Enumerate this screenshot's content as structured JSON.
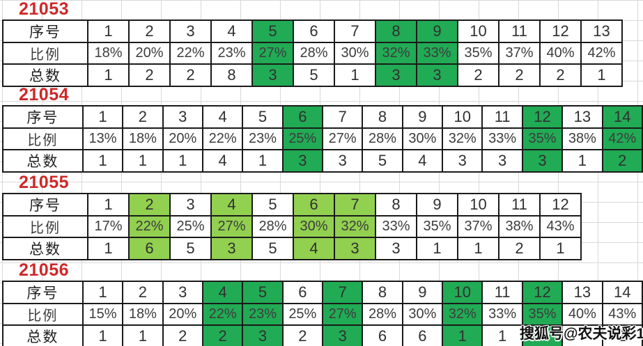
{
  "colors": {
    "title_red": "#cf2829",
    "dark_green": "#21ab55",
    "light_green": "#92d050",
    "border_black": "#1a1a1a",
    "grid_gray": "#d8d8d8"
  },
  "row_labels": {
    "serial": "序号",
    "ratio": "比例",
    "total": "总数"
  },
  "watermark": {
    "text": "搜狐号@农夫说彩1"
  },
  "tables": [
    {
      "title": "21053",
      "highlight": "dark",
      "highlight_cols": [
        5,
        8,
        9
      ],
      "serial": [
        "1",
        "2",
        "3",
        "4",
        "5",
        "6",
        "7",
        "8",
        "9",
        "10",
        "11",
        "12",
        "13"
      ],
      "ratio": [
        "18%",
        "20%",
        "22%",
        "23%",
        "27%",
        "28%",
        "30%",
        "32%",
        "33%",
        "35%",
        "37%",
        "40%",
        "42%"
      ],
      "total": [
        "1",
        "2",
        "2",
        "8",
        "3",
        "5",
        "1",
        "3",
        "3",
        "2",
        "2",
        "2",
        "1"
      ]
    },
    {
      "title": "21054",
      "highlight": "dark",
      "highlight_cols": [
        6,
        12,
        14
      ],
      "serial": [
        "1",
        "2",
        "3",
        "4",
        "5",
        "6",
        "7",
        "8",
        "9",
        "10",
        "11",
        "12",
        "13",
        "14"
      ],
      "ratio": [
        "13%",
        "18%",
        "20%",
        "22%",
        "23%",
        "25%",
        "27%",
        "28%",
        "30%",
        "32%",
        "33%",
        "35%",
        "38%",
        "42%"
      ],
      "total": [
        "1",
        "1",
        "1",
        "4",
        "1",
        "3",
        "3",
        "5",
        "4",
        "3",
        "3",
        "3",
        "1",
        "2"
      ]
    },
    {
      "title": "21055",
      "highlight": "light",
      "highlight_cols": [
        2,
        4,
        6,
        7
      ],
      "serial": [
        "1",
        "2",
        "3",
        "4",
        "5",
        "6",
        "7",
        "8",
        "9",
        "10",
        "11",
        "12"
      ],
      "ratio": [
        "17%",
        "22%",
        "25%",
        "27%",
        "28%",
        "30%",
        "32%",
        "33%",
        "35%",
        "37%",
        "38%",
        "43%"
      ],
      "total": [
        "1",
        "6",
        "5",
        "3",
        "5",
        "4",
        "3",
        "3",
        "1",
        "1",
        "2",
        "1"
      ]
    },
    {
      "title": "21056",
      "highlight": "dark",
      "highlight_cols": [
        4,
        5,
        7,
        10,
        12
      ],
      "serial": [
        "1",
        "2",
        "3",
        "4",
        "5",
        "6",
        "7",
        "8",
        "9",
        "10",
        "11",
        "12",
        "13",
        "14"
      ],
      "ratio": [
        "15%",
        "18%",
        "20%",
        "22%",
        "23%",
        "25%",
        "27%",
        "28%",
        "30%",
        "32%",
        "33%",
        "35%",
        "40%",
        "43%"
      ],
      "total": [
        "1",
        "1",
        "2",
        "2",
        "3",
        "2",
        "3",
        "6",
        "6",
        "1",
        "1",
        "",
        "",
        "1"
      ]
    }
  ]
}
